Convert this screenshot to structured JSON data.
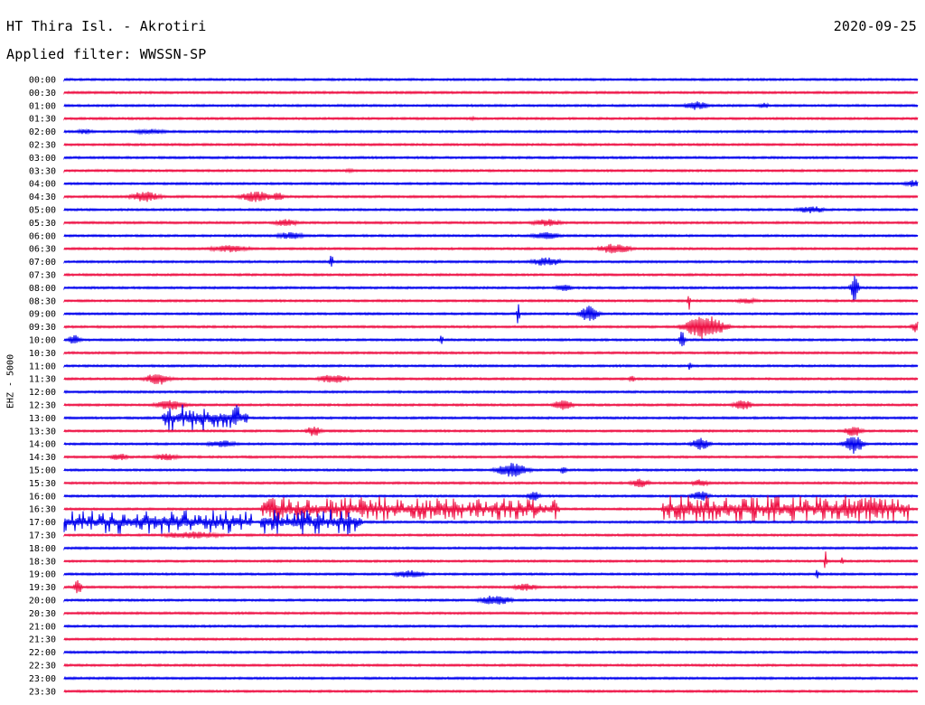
{
  "header": {
    "station": "HT Thira Isl. - Akrotiri",
    "date": "2020-09-25",
    "filter": "Applied filter: WWSSN-SP"
  },
  "channel_label": "EHZ - 5000",
  "colors": {
    "blue_trace": "#0000ee",
    "red_trace": "#ee1144",
    "background": "#ffffff"
  },
  "chart_data": {
    "type": "line",
    "subtype": "helicorder",
    "ylabel": "EHZ - 5000",
    "trace_colors_alternate": [
      "blue",
      "red"
    ],
    "rows": [
      {
        "time": "00:00",
        "color": "blue",
        "events": []
      },
      {
        "time": "00:30",
        "color": "red",
        "events": []
      },
      {
        "time": "01:00",
        "color": "blue",
        "events": [
          {
            "at": 0.72,
            "w": 0.04,
            "a": 5
          },
          {
            "at": 0.81,
            "w": 0.02,
            "a": 3
          }
        ]
      },
      {
        "time": "01:30",
        "color": "red",
        "events": [
          {
            "at": 0.47,
            "w": 0.02,
            "a": 2
          }
        ]
      },
      {
        "time": "02:00",
        "color": "blue",
        "events": [
          {
            "at": 0.01,
            "w": 0.03,
            "a": 3
          },
          {
            "at": 0.07,
            "w": 0.06,
            "a": 3
          }
        ]
      },
      {
        "time": "02:30",
        "color": "red",
        "events": []
      },
      {
        "time": "03:00",
        "color": "blue",
        "events": []
      },
      {
        "time": "03:30",
        "color": "red",
        "events": [
          {
            "at": 0.32,
            "w": 0.03,
            "a": 2
          }
        ]
      },
      {
        "time": "04:00",
        "color": "blue",
        "events": [
          {
            "at": 0.98,
            "w": 0.03,
            "a": 4
          }
        ]
      },
      {
        "time": "04:30",
        "color": "red",
        "events": [
          {
            "at": 0.07,
            "w": 0.05,
            "a": 6
          },
          {
            "at": 0.2,
            "w": 0.05,
            "a": 6
          },
          {
            "at": 0.24,
            "w": 0.02,
            "a": 5
          }
        ]
      },
      {
        "time": "05:00",
        "color": "blue",
        "events": [
          {
            "at": 0.85,
            "w": 0.05,
            "a": 4
          }
        ]
      },
      {
        "time": "05:30",
        "color": "red",
        "events": [
          {
            "at": 0.24,
            "w": 0.04,
            "a": 4
          },
          {
            "at": 0.54,
            "w": 0.05,
            "a": 4
          }
        ]
      },
      {
        "time": "06:00",
        "color": "blue",
        "events": [
          {
            "at": 0.24,
            "w": 0.05,
            "a": 4
          },
          {
            "at": 0.54,
            "w": 0.05,
            "a": 4
          }
        ]
      },
      {
        "time": "06:30",
        "color": "red",
        "events": [
          {
            "at": 0.16,
            "w": 0.07,
            "a": 4
          },
          {
            "at": 0.62,
            "w": 0.05,
            "a": 6
          }
        ]
      },
      {
        "time": "07:00",
        "color": "blue",
        "events": [
          {
            "at": 0.31,
            "w": 0.006,
            "a": 10
          },
          {
            "at": 0.54,
            "w": 0.05,
            "a": 5
          }
        ]
      },
      {
        "time": "07:30",
        "color": "red",
        "events": []
      },
      {
        "time": "08:00",
        "color": "blue",
        "events": [
          {
            "at": 0.57,
            "w": 0.03,
            "a": 4
          },
          {
            "at": 0.92,
            "w": 0.012,
            "a": 18
          }
        ]
      },
      {
        "time": "08:30",
        "color": "red",
        "events": [
          {
            "at": 0.73,
            "w": 0.004,
            "a": 12
          },
          {
            "at": 0.78,
            "w": 0.04,
            "a": 3
          }
        ]
      },
      {
        "time": "09:00",
        "color": "blue",
        "events": [
          {
            "at": 0.53,
            "w": 0.004,
            "a": 14
          },
          {
            "at": 0.6,
            "w": 0.03,
            "a": 9
          }
        ]
      },
      {
        "time": "09:30",
        "color": "red",
        "events": [
          {
            "at": 0.72,
            "w": 0.06,
            "a": 14
          },
          {
            "at": 0.99,
            "w": 0.02,
            "a": 7
          }
        ]
      },
      {
        "time": "10:00",
        "color": "blue",
        "events": [
          {
            "at": 0.002,
            "w": 0.02,
            "a": 6
          },
          {
            "at": 0.44,
            "w": 0.004,
            "a": 8
          },
          {
            "at": 0.72,
            "w": 0.008,
            "a": 12
          }
        ]
      },
      {
        "time": "10:30",
        "color": "red",
        "events": []
      },
      {
        "time": "11:00",
        "color": "blue",
        "events": [
          {
            "at": 0.73,
            "w": 0.006,
            "a": 5
          }
        ]
      },
      {
        "time": "11:30",
        "color": "red",
        "events": [
          {
            "at": 0.09,
            "w": 0.04,
            "a": 7
          },
          {
            "at": 0.29,
            "w": 0.05,
            "a": 5
          },
          {
            "at": 0.66,
            "w": 0.01,
            "a": 4
          }
        ]
      },
      {
        "time": "12:00",
        "color": "blue",
        "events": []
      },
      {
        "time": "12:30",
        "color": "red",
        "events": [
          {
            "at": 0.1,
            "w": 0.05,
            "a": 6
          },
          {
            "at": 0.57,
            "w": 0.03,
            "a": 7
          },
          {
            "at": 0.78,
            "w": 0.03,
            "a": 6
          }
        ]
      },
      {
        "time": "13:00",
        "color": "blue",
        "events": [
          {
            "at": 0.115,
            "w": 0.1,
            "a": 15,
            "burst": true
          }
        ]
      },
      {
        "time": "13:30",
        "color": "red",
        "events": [
          {
            "at": 0.28,
            "w": 0.025,
            "a": 6
          },
          {
            "at": 0.91,
            "w": 0.03,
            "a": 6
          }
        ]
      },
      {
        "time": "14:00",
        "color": "blue",
        "events": [
          {
            "at": 0.16,
            "w": 0.05,
            "a": 4
          },
          {
            "at": 0.73,
            "w": 0.03,
            "a": 7
          },
          {
            "at": 0.91,
            "w": 0.03,
            "a": 11
          }
        ]
      },
      {
        "time": "14:30",
        "color": "red",
        "events": [
          {
            "at": 0.05,
            "w": 0.03,
            "a": 4
          },
          {
            "at": 0.1,
            "w": 0.04,
            "a": 4
          }
        ]
      },
      {
        "time": "15:00",
        "color": "blue",
        "events": [
          {
            "at": 0.5,
            "w": 0.05,
            "a": 8
          },
          {
            "at": 0.58,
            "w": 0.01,
            "a": 5
          }
        ]
      },
      {
        "time": "15:30",
        "color": "red",
        "events": [
          {
            "at": 0.66,
            "w": 0.03,
            "a": 5
          },
          {
            "at": 0.73,
            "w": 0.03,
            "a": 4
          }
        ]
      },
      {
        "time": "16:00",
        "color": "blue",
        "events": [
          {
            "at": 0.54,
            "w": 0.02,
            "a": 6
          },
          {
            "at": 0.73,
            "w": 0.03,
            "a": 6
          }
        ]
      },
      {
        "time": "16:30",
        "color": "red",
        "events": [
          {
            "at": 0.23,
            "w": 0.15,
            "a": 14,
            "burst": true
          },
          {
            "at": 0.38,
            "w": 0.2,
            "a": 12,
            "burst": true
          },
          {
            "at": 0.7,
            "w": 0.29,
            "a": 15,
            "burst": true
          }
        ]
      },
      {
        "time": "17:00",
        "color": "blue",
        "events": [
          {
            "at": 0.0,
            "w": 0.22,
            "a": 13,
            "burst": true
          },
          {
            "at": 0.23,
            "w": 0.12,
            "a": 14,
            "burst": true
          }
        ]
      },
      {
        "time": "17:30",
        "color": "red",
        "events": [
          {
            "at": 0.1,
            "w": 0.1,
            "a": 4
          }
        ]
      },
      {
        "time": "18:00",
        "color": "blue",
        "events": []
      },
      {
        "time": "18:30",
        "color": "red",
        "events": [
          {
            "at": 0.89,
            "w": 0.004,
            "a": 12
          },
          {
            "at": 0.91,
            "w": 0.003,
            "a": 6
          }
        ]
      },
      {
        "time": "19:00",
        "color": "blue",
        "events": [
          {
            "at": 0.38,
            "w": 0.05,
            "a": 5
          },
          {
            "at": 0.88,
            "w": 0.004,
            "a": 9
          }
        ]
      },
      {
        "time": "19:30",
        "color": "red",
        "events": [
          {
            "at": 0.01,
            "w": 0.012,
            "a": 9
          },
          {
            "at": 0.52,
            "w": 0.04,
            "a": 4
          }
        ]
      },
      {
        "time": "20:00",
        "color": "blue",
        "events": [
          {
            "at": 0.48,
            "w": 0.05,
            "a": 6
          }
        ]
      },
      {
        "time": "20:30",
        "color": "red",
        "events": []
      },
      {
        "time": "21:00",
        "color": "blue",
        "events": []
      },
      {
        "time": "21:30",
        "color": "red",
        "events": []
      },
      {
        "time": "22:00",
        "color": "blue",
        "events": []
      },
      {
        "time": "22:30",
        "color": "red",
        "events": []
      },
      {
        "time": "23:00",
        "color": "blue",
        "events": []
      },
      {
        "time": "23:30",
        "color": "red",
        "events": []
      }
    ]
  }
}
